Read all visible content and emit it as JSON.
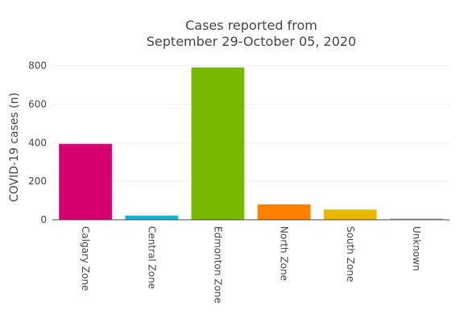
{
  "chart_data": {
    "type": "bar",
    "title_lines": [
      "Cases reported from",
      "September 29-October 05, 2020"
    ],
    "xlabel": "",
    "ylabel": "COVID-19 cases (n)",
    "categories": [
      "Calgary Zone",
      "Central Zone",
      "Edmonton Zone",
      "North Zone",
      "South Zone",
      "Unknown"
    ],
    "values": [
      394,
      22,
      791,
      80,
      53,
      6
    ],
    "colors": [
      "#d6006e",
      "#17b3cf",
      "#76b900",
      "#ff7f00",
      "#e6b800",
      "#a6a6a6"
    ],
    "ylim": [
      0,
      840
    ],
    "yticks": [
      0,
      200,
      400,
      600,
      800
    ],
    "grid": true,
    "legend": "none"
  }
}
